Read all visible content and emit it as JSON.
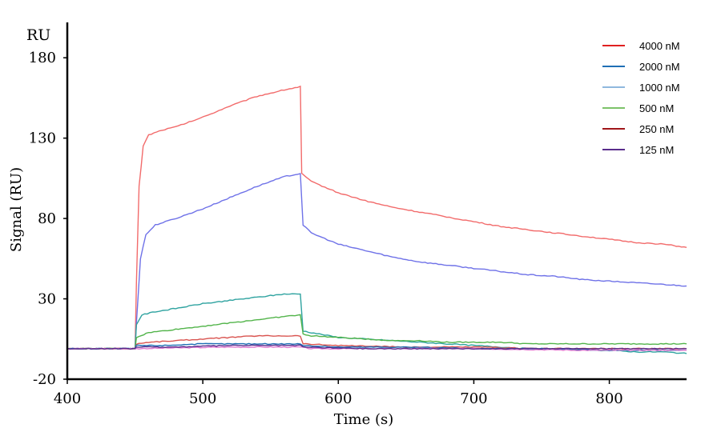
{
  "chart_data": {
    "type": "line",
    "title": "",
    "xlabel": "Time (s)",
    "ylabel": "Signal (RU)",
    "y_unit_label": "RU",
    "xlim": [
      400,
      857
    ],
    "ylim": [
      -20,
      202
    ],
    "x_ticks": [
      400,
      500,
      600,
      700,
      800
    ],
    "y_ticks": [
      -20,
      30,
      80,
      130,
      180
    ],
    "grid": false,
    "legend_position": "top-right",
    "legend": [
      {
        "label": "4000 nM",
        "color": "#e02020"
      },
      {
        "label": "2000 nM",
        "color": "#1f6fb5"
      },
      {
        "label": "1000 nM",
        "color": "#8fb8de"
      },
      {
        "label": "500 nM",
        "color": "#7cc36a"
      },
      {
        "label": "250 nM",
        "color": "#a0161a"
      },
      {
        "label": "125 nM",
        "color": "#5a2d8c"
      }
    ],
    "series": [
      {
        "color": "#f26b6b",
        "points": [
          [
            400,
            -1
          ],
          [
            445,
            -1
          ],
          [
            450,
            -1
          ],
          [
            451,
            40
          ],
          [
            453,
            100
          ],
          [
            456,
            125
          ],
          [
            460,
            132
          ],
          [
            470,
            135
          ],
          [
            480,
            137
          ],
          [
            500,
            143
          ],
          [
            520,
            150
          ],
          [
            540,
            156
          ],
          [
            560,
            160
          ],
          [
            572,
            162
          ],
          [
            573,
            108
          ],
          [
            580,
            103
          ],
          [
            600,
            96
          ],
          [
            620,
            91
          ],
          [
            640,
            87
          ],
          [
            660,
            84
          ],
          [
            680,
            81
          ],
          [
            700,
            78
          ],
          [
            720,
            75
          ],
          [
            740,
            73
          ],
          [
            760,
            71
          ],
          [
            780,
            69
          ],
          [
            800,
            67
          ],
          [
            820,
            65
          ],
          [
            840,
            64
          ],
          [
            857,
            62
          ]
        ]
      },
      {
        "color": "#6f72e8",
        "points": [
          [
            400,
            -1
          ],
          [
            445,
            -1
          ],
          [
            450,
            -1
          ],
          [
            451,
            15
          ],
          [
            454,
            55
          ],
          [
            458,
            70
          ],
          [
            465,
            76
          ],
          [
            480,
            80
          ],
          [
            500,
            86
          ],
          [
            520,
            93
          ],
          [
            540,
            100
          ],
          [
            560,
            106
          ],
          [
            572,
            108
          ],
          [
            574,
            76
          ],
          [
            580,
            71
          ],
          [
            600,
            64
          ],
          [
            620,
            60
          ],
          [
            640,
            56
          ],
          [
            660,
            53
          ],
          [
            680,
            51
          ],
          [
            700,
            49
          ],
          [
            720,
            47
          ],
          [
            740,
            45
          ],
          [
            760,
            44
          ],
          [
            780,
            42
          ],
          [
            800,
            41
          ],
          [
            820,
            40
          ],
          [
            840,
            39
          ],
          [
            857,
            38
          ]
        ]
      },
      {
        "color": "#2fa3a0",
        "points": [
          [
            400,
            -1
          ],
          [
            445,
            -1
          ],
          [
            450,
            -1
          ],
          [
            451,
            14
          ],
          [
            455,
            20
          ],
          [
            465,
            22
          ],
          [
            480,
            24
          ],
          [
            500,
            27
          ],
          [
            520,
            29
          ],
          [
            540,
            31
          ],
          [
            560,
            33
          ],
          [
            572,
            33
          ],
          [
            574,
            10
          ],
          [
            580,
            9
          ],
          [
            600,
            6
          ],
          [
            620,
            5
          ],
          [
            640,
            4
          ],
          [
            660,
            3
          ],
          [
            680,
            2
          ],
          [
            700,
            1
          ],
          [
            720,
            0
          ],
          [
            740,
            -1
          ],
          [
            760,
            -1
          ],
          [
            780,
            -2
          ],
          [
            800,
            -2
          ],
          [
            820,
            -3
          ],
          [
            840,
            -3
          ],
          [
            857,
            -4
          ]
        ]
      },
      {
        "color": "#52b44a",
        "points": [
          [
            400,
            -1
          ],
          [
            445,
            -1
          ],
          [
            450,
            -1
          ],
          [
            451,
            6
          ],
          [
            460,
            9
          ],
          [
            480,
            11
          ],
          [
            500,
            13
          ],
          [
            520,
            15
          ],
          [
            540,
            17
          ],
          [
            560,
            19
          ],
          [
            572,
            20
          ],
          [
            574,
            8
          ],
          [
            580,
            7
          ],
          [
            600,
            6
          ],
          [
            620,
            5
          ],
          [
            640,
            4
          ],
          [
            660,
            4
          ],
          [
            680,
            3
          ],
          [
            700,
            3
          ],
          [
            720,
            3
          ],
          [
            740,
            2
          ],
          [
            760,
            2
          ],
          [
            780,
            2
          ],
          [
            800,
            2
          ],
          [
            820,
            2
          ],
          [
            840,
            2
          ],
          [
            857,
            2
          ]
        ]
      },
      {
        "color": "#d9534f",
        "points": [
          [
            400,
            -1
          ],
          [
            445,
            -1
          ],
          [
            450,
            -1
          ],
          [
            451,
            2
          ],
          [
            460,
            3
          ],
          [
            480,
            4
          ],
          [
            500,
            5
          ],
          [
            520,
            6
          ],
          [
            540,
            7
          ],
          [
            560,
            7
          ],
          [
            572,
            7
          ],
          [
            574,
            2
          ],
          [
            600,
            1
          ],
          [
            650,
            0
          ],
          [
            700,
            0
          ],
          [
            750,
            -1
          ],
          [
            800,
            -1
          ],
          [
            857,
            -1
          ]
        ]
      },
      {
        "color": "#1f6fb5",
        "points": [
          [
            400,
            -1
          ],
          [
            445,
            -1
          ],
          [
            450,
            -1
          ],
          [
            451,
            1
          ],
          [
            470,
            1
          ],
          [
            500,
            2
          ],
          [
            540,
            2
          ],
          [
            572,
            2
          ],
          [
            574,
            1
          ],
          [
            600,
            0
          ],
          [
            650,
            0
          ],
          [
            700,
            -1
          ],
          [
            750,
            -1
          ],
          [
            800,
            -2
          ],
          [
            857,
            -2
          ]
        ]
      },
      {
        "color": "#e07ad0",
        "points": [
          [
            400,
            -1
          ],
          [
            445,
            -1
          ],
          [
            450,
            -1
          ],
          [
            451,
            -1
          ],
          [
            480,
            -0.5
          ],
          [
            520,
            0
          ],
          [
            572,
            0
          ],
          [
            580,
            -1
          ],
          [
            620,
            -1
          ],
          [
            700,
            -1
          ],
          [
            780,
            -2
          ],
          [
            857,
            -2
          ]
        ]
      },
      {
        "color": "#5a2d8c",
        "points": [
          [
            400,
            -1
          ],
          [
            445,
            -1
          ],
          [
            450,
            -1
          ],
          [
            451,
            0
          ],
          [
            480,
            0
          ],
          [
            520,
            1
          ],
          [
            572,
            1
          ],
          [
            574,
            0
          ],
          [
            620,
            -1
          ],
          [
            700,
            -1
          ],
          [
            780,
            -1
          ],
          [
            857,
            -1
          ]
        ]
      }
    ]
  }
}
